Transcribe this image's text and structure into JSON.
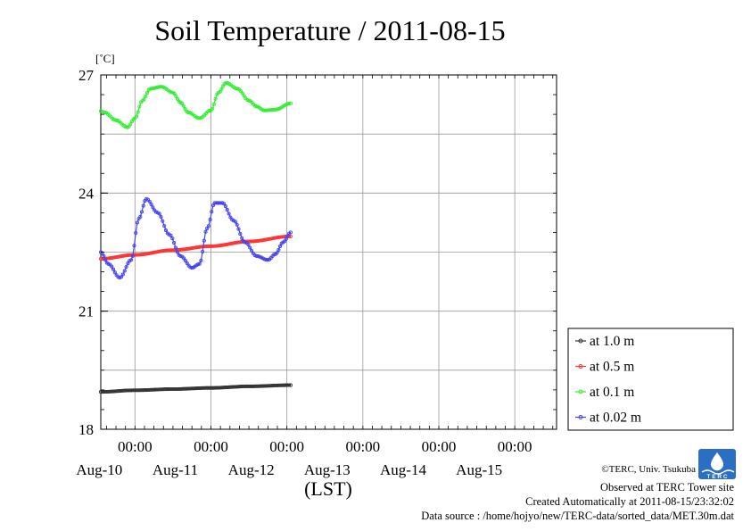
{
  "chart_data": {
    "type": "line",
    "title": "Soil Temperature / 2011-08-15",
    "ylabel_unit": "[˚C]",
    "xlabel": "(LST)",
    "ylim": [
      18,
      27
    ],
    "yticks": [
      18,
      21,
      24,
      27
    ],
    "x_unit": "days since Aug-09 00:00 LST",
    "xlim": [
      0.55,
      6.55
    ],
    "xticks": [
      {
        "x": 1,
        "time": "00:00",
        "date": "Aug-10"
      },
      {
        "x": 2,
        "time": "00:00",
        "date": "Aug-11"
      },
      {
        "x": 3,
        "time": "00:00",
        "date": "Aug-12"
      },
      {
        "x": 4,
        "time": "00:00",
        "date": "Aug-13"
      },
      {
        "x": 5,
        "time": "00:00",
        "date": "Aug-14"
      },
      {
        "x": 6,
        "time": "00:00",
        "date": "Aug-15"
      }
    ],
    "grid": true,
    "legend_position": "right",
    "series": [
      {
        "name": "at 1.0 m",
        "color": "#333333",
        "x": [
          0.55,
          1.0,
          1.5,
          2.0,
          2.5,
          3.05
        ],
        "y": [
          18.95,
          18.99,
          19.02,
          19.05,
          19.09,
          19.12
        ]
      },
      {
        "name": "at 0.5 m",
        "color": "#ff3333",
        "x": [
          0.55,
          1.0,
          1.5,
          2.0,
          2.5,
          3.05
        ],
        "y": [
          22.33,
          22.43,
          22.55,
          22.65,
          22.77,
          22.9
        ]
      },
      {
        "name": "at 0.1 m",
        "color": "#33ee33",
        "x": [
          0.55,
          0.6,
          0.75,
          0.9,
          1.0,
          1.1,
          1.2,
          1.35,
          1.5,
          1.6,
          1.7,
          1.85,
          2.0,
          2.1,
          2.2,
          2.35,
          2.5,
          2.6,
          2.7,
          2.85,
          3.05
        ],
        "y": [
          26.08,
          26.05,
          25.85,
          25.67,
          25.9,
          26.35,
          26.65,
          26.7,
          26.55,
          26.3,
          26.05,
          25.9,
          26.1,
          26.55,
          26.8,
          26.65,
          26.35,
          26.2,
          26.1,
          26.12,
          26.28
        ]
      },
      {
        "name": "at 0.02 m",
        "color": "#4444ee",
        "x": [
          0.55,
          0.65,
          0.8,
          0.95,
          1.05,
          1.15,
          1.3,
          1.45,
          1.6,
          1.75,
          1.85,
          1.95,
          2.05,
          2.15,
          2.3,
          2.45,
          2.6,
          2.75,
          2.85,
          2.95,
          3.05
        ],
        "y": [
          22.5,
          22.2,
          21.85,
          22.3,
          23.35,
          23.85,
          23.5,
          22.95,
          22.4,
          22.1,
          22.2,
          23.1,
          23.75,
          23.75,
          23.3,
          22.75,
          22.4,
          22.3,
          22.45,
          22.75,
          23.0
        ]
      }
    ]
  },
  "credits": {
    "copyright": "©TERC, Univ. Tsukuba",
    "observed": "Observed at TERC Tower site",
    "created": "Created Automatically at 2011-08-15/23:32:02",
    "source": "Data source : /home/hojyo/new/TERC-data/sorted_data/MET.30m.dat",
    "logo_text": "T E R C"
  }
}
